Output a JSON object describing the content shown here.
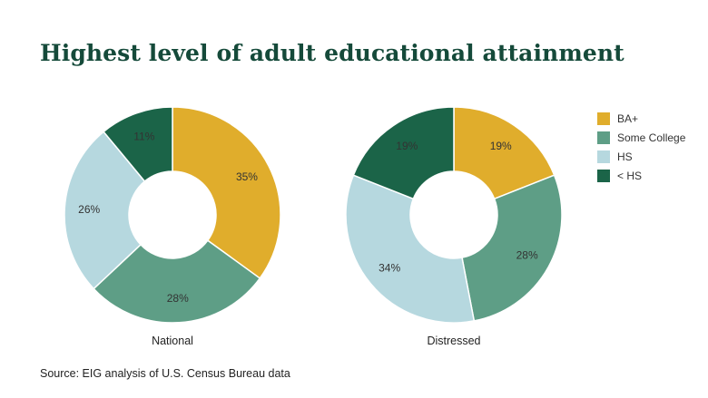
{
  "title": "Highest level of adult educational attainment",
  "source": "Source: EIG analysis of U.S. Census Bureau data",
  "colors": {
    "BA+": "#e0ad2c",
    "Some College": "#5e9e86",
    "HS": "#b6d8df",
    "< HS": "#1b6448"
  },
  "chart_data": [
    {
      "type": "pie",
      "title": "National",
      "categories": [
        "BA+",
        "Some College",
        "HS",
        "< HS"
      ],
      "values": [
        35,
        28,
        26,
        11
      ],
      "labels": [
        "35%",
        "28%",
        "26%",
        "11%"
      ],
      "legend_position": "right"
    },
    {
      "type": "pie",
      "title": "Distressed",
      "categories": [
        "BA+",
        "Some College",
        "HS",
        "< HS"
      ],
      "values": [
        19,
        28,
        34,
        19
      ],
      "labels": [
        "19%",
        "28%",
        "34%",
        "19%"
      ],
      "legend_position": "right"
    }
  ],
  "legend": [
    "BA+",
    "Some College",
    "HS",
    "< HS"
  ]
}
